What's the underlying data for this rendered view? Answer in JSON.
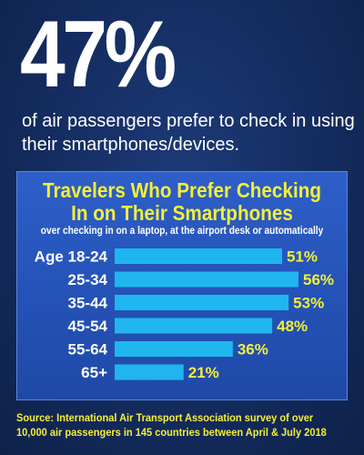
{
  "headline": {
    "stat": "47%",
    "text": "of air passengers prefer to check in using their smartphones/devices."
  },
  "colors": {
    "background": "#142c5f",
    "panel": "#2553b8",
    "bar": "#1fb6ef",
    "accent_yellow": "#f4ef3a",
    "text_white": "#ffffff"
  },
  "chart_data": {
    "type": "bar",
    "orientation": "horizontal",
    "title": "Travelers Who Prefer Checking In on Their Smartphones",
    "subtitle": "over checking in on a laptop, at the airport desk or automatically",
    "categories": [
      "Age 18-24",
      "25-34",
      "35-44",
      "45-54",
      "55-64",
      "65+"
    ],
    "values": [
      51,
      56,
      53,
      48,
      36,
      21
    ],
    "value_labels": [
      "51%",
      "56%",
      "53%",
      "48%",
      "36%",
      "21%"
    ],
    "unit": "%",
    "xlim": [
      0,
      56
    ],
    "grid": false,
    "legend": "none"
  },
  "source": "Source: International Air Transport Association survey of over 10,000 air passengers in 145 countries between April & July 2018"
}
